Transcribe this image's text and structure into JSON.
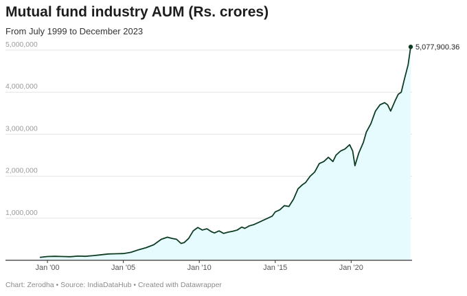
{
  "chart_data": {
    "type": "area",
    "title": "Mutual fund industry AUM (Rs. crores)",
    "subtitle": "From July 1999 to December 2023",
    "source": "Chart: Zerodha • Source: IndiaDataHub • Created with Datawrapper",
    "ylim": [
      0,
      5000000
    ],
    "yticks": [
      1000000,
      2000000,
      3000000,
      4000000,
      5000000
    ],
    "ytick_labels": [
      "1,000,000",
      "2,000,000",
      "3,000,000",
      "4,000,000",
      "5,000,000"
    ],
    "xticks": [
      2000,
      2005,
      2010,
      2015,
      2020
    ],
    "xtick_labels": [
      "Jan '00",
      "Jan '05",
      "Jan '10",
      "Jan '15",
      "Jan '20"
    ],
    "xlim": [
      1999.5,
      2023.92
    ],
    "grid": true,
    "end_label": "5,077,900.36",
    "colors": {
      "line": "#0d3b22",
      "fill": "#e6fbfd",
      "grid": "#e3e3e3",
      "axis": "#333333"
    },
    "series": [
      {
        "x": [
          1999.5,
          2000.0,
          2000.5,
          2001.0,
          2001.5,
          2002.0,
          2002.5,
          2003.0,
          2003.5,
          2004.0,
          2004.5,
          2005.0,
          2005.5,
          2006.0,
          2006.5,
          2007.0,
          2007.5,
          2007.9,
          2008.2,
          2008.5,
          2008.8,
          2009.0,
          2009.3,
          2009.6,
          2009.9,
          2010.2,
          2010.5,
          2010.8,
          2011.0,
          2011.3,
          2011.6,
          2011.9,
          2012.2,
          2012.5,
          2012.8,
          2013.0,
          2013.3,
          2013.6,
          2013.9,
          2014.2,
          2014.5,
          2014.8,
          2015.0,
          2015.3,
          2015.6,
          2015.9,
          2016.2,
          2016.5,
          2016.8,
          2017.0,
          2017.3,
          2017.6,
          2017.9,
          2018.2,
          2018.5,
          2018.8,
          2019.0,
          2019.3,
          2019.6,
          2019.9,
          2020.1,
          2020.25,
          2020.5,
          2020.8,
          2021.0,
          2021.3,
          2021.6,
          2021.9,
          2022.2,
          2022.4,
          2022.6,
          2022.9,
          2023.1,
          2023.3,
          2023.5,
          2023.75,
          2023.92
        ],
        "values": [
          70000,
          90000,
          95000,
          90000,
          85000,
          100000,
          95000,
          110000,
          130000,
          150000,
          155000,
          160000,
          190000,
          250000,
          300000,
          370000,
          500000,
          550000,
          520000,
          500000,
          400000,
          420000,
          520000,
          700000,
          780000,
          720000,
          750000,
          680000,
          650000,
          700000,
          640000,
          670000,
          690000,
          720000,
          790000,
          760000,
          820000,
          850000,
          900000,
          950000,
          1000000,
          1050000,
          1150000,
          1200000,
          1300000,
          1280000,
          1450000,
          1700000,
          1800000,
          1850000,
          2000000,
          2100000,
          2300000,
          2350000,
          2450000,
          2350000,
          2500000,
          2600000,
          2650000,
          2750000,
          2600000,
          2250000,
          2550000,
          2800000,
          3050000,
          3250000,
          3550000,
          3700000,
          3750000,
          3700000,
          3550000,
          3800000,
          3950000,
          4000000,
          4300000,
          4650000,
          5077900.36
        ]
      }
    ]
  }
}
